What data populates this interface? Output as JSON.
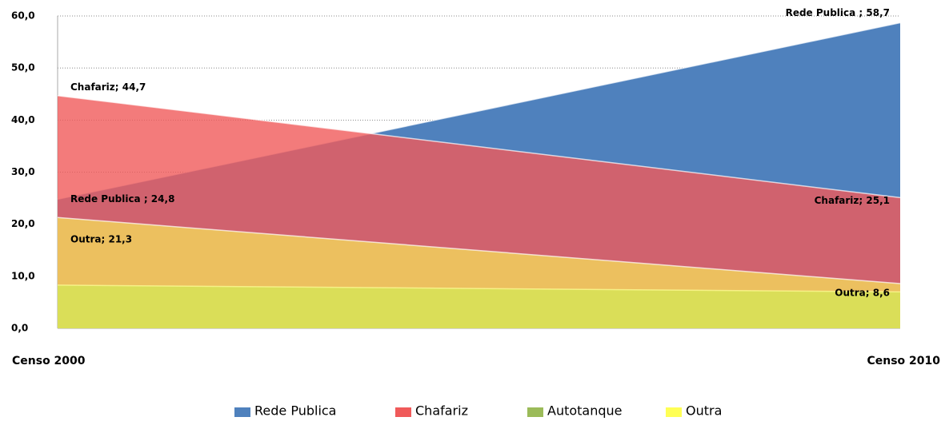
{
  "chart_data": {
    "type": "area",
    "categories": [
      "Censo 2000",
      "Censo 2010"
    ],
    "series": [
      {
        "name": "Rede Publica",
        "color": "#4f81bd",
        "values": [
          24.8,
          58.7
        ],
        "value_labels": [
          "Rede Publica ; 24,8",
          "Rede Publica ; 58,7"
        ]
      },
      {
        "name": "Chafariz",
        "color": "#f05a5a",
        "values": [
          44.7,
          25.1
        ],
        "value_labels": [
          "Chafariz; 44,7",
          "Chafariz; 25,1"
        ]
      },
      {
        "name": "Autotanque",
        "color": "#9bbb59",
        "values": [
          8.3,
          7.0
        ]
      },
      {
        "name": "Outra",
        "color": "#ffff55",
        "values": [
          21.3,
          8.6
        ],
        "value_labels": [
          "Outra; 21,3",
          "Outra; 8,6"
        ]
      }
    ],
    "ylim": [
      0,
      60
    ],
    "yticks": [
      {
        "value": 0,
        "label": "0,0"
      },
      {
        "value": 10,
        "label": "10,0"
      },
      {
        "value": 20,
        "label": "20,0"
      },
      {
        "value": 30,
        "label": "30,0"
      },
      {
        "value": 40,
        "label": "40,0"
      },
      {
        "value": 50,
        "label": "50,0"
      },
      {
        "value": 60,
        "label": "60,0"
      }
    ],
    "grid": true,
    "legend": "bottom"
  }
}
